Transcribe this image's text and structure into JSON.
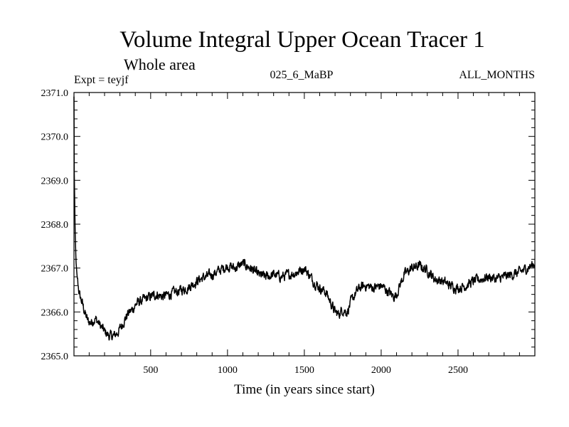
{
  "colors": {
    "background": "#ffffff",
    "foreground": "#000000"
  },
  "chart_data": {
    "type": "line",
    "title": "Volume Integral Upper Ocean Tracer 1",
    "subtitle": "Whole area",
    "header_left": "Expt = teyjf",
    "header_center": "025_6_MaBP",
    "header_right": "ALL_MONTHS",
    "xlabel": "Time (in years since start)",
    "ylabel": "",
    "xlim": [
      1,
      3000
    ],
    "ylim": [
      2365.0,
      2371.0
    ],
    "xticks": [
      500,
      1000,
      1500,
      2000,
      2500
    ],
    "xtick_labels": [
      "500",
      "1000",
      "1500",
      "2000",
      "2500"
    ],
    "yticks": [
      2365.0,
      2366.0,
      2367.0,
      2368.0,
      2369.0,
      2370.0,
      2371.0
    ],
    "ytick_labels": [
      "2365.0",
      "2366.0",
      "2367.0",
      "2368.0",
      "2369.0",
      "2370.0",
      "2371.0"
    ],
    "grid": false,
    "legend": "none",
    "noise_amplitude": 0.1,
    "series": [
      {
        "name": "Volume Integral Upper Ocean Tracer 1",
        "x": [
          1,
          3,
          6,
          10,
          15,
          20,
          30,
          40,
          55,
          70,
          90,
          110,
          140,
          170,
          200,
          230,
          260,
          290,
          320,
          350,
          380,
          410,
          440,
          470,
          500,
          540,
          580,
          620,
          660,
          700,
          740,
          780,
          820,
          860,
          900,
          950,
          1000,
          1050,
          1100,
          1150,
          1200,
          1250,
          1300,
          1350,
          1400,
          1450,
          1500,
          1530,
          1560,
          1600,
          1640,
          1680,
          1700,
          1720,
          1750,
          1780,
          1800,
          1830,
          1860,
          1900,
          1950,
          2000,
          2050,
          2080,
          2100,
          2120,
          2150,
          2200,
          2250,
          2300,
          2350,
          2400,
          2450,
          2500,
          2550,
          2600,
          2650,
          2700,
          2750,
          2800,
          2850,
          2900,
          2950,
          3000
        ],
        "y": [
          2370.9,
          2369.2,
          2368.4,
          2367.6,
          2367.1,
          2366.85,
          2366.55,
          2366.35,
          2366.2,
          2366.0,
          2365.8,
          2365.75,
          2365.85,
          2365.7,
          2365.55,
          2365.45,
          2365.45,
          2365.55,
          2365.75,
          2365.95,
          2366.05,
          2366.2,
          2366.25,
          2366.3,
          2366.35,
          2366.4,
          2366.35,
          2366.4,
          2366.45,
          2366.5,
          2366.55,
          2366.65,
          2366.75,
          2366.8,
          2366.85,
          2366.95,
          2367.05,
          2367.0,
          2367.1,
          2367.0,
          2366.85,
          2366.8,
          2366.85,
          2366.8,
          2366.85,
          2366.9,
          2367.0,
          2366.85,
          2366.7,
          2366.55,
          2366.45,
          2366.15,
          2366.0,
          2365.95,
          2366.05,
          2366.0,
          2366.2,
          2366.4,
          2366.55,
          2366.6,
          2366.55,
          2366.6,
          2366.45,
          2366.35,
          2366.4,
          2366.6,
          2366.85,
          2367.0,
          2367.05,
          2366.95,
          2366.75,
          2366.7,
          2366.6,
          2366.55,
          2366.6,
          2366.7,
          2366.75,
          2366.8,
          2366.75,
          2366.8,
          2366.85,
          2366.9,
          2367.0,
          2367.1
        ]
      }
    ]
  }
}
